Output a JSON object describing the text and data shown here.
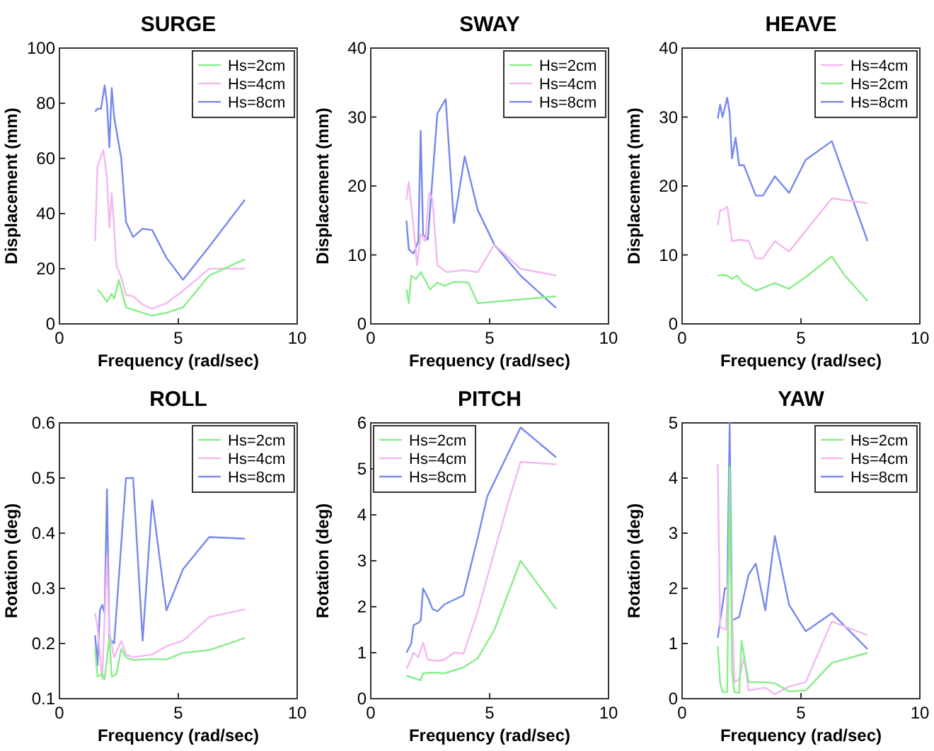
{
  "chart_data": [
    {
      "type": "line",
      "title": "SURGE",
      "xlabel": "Frequency (rad/sec)",
      "ylabel": "Displacement (mm)",
      "xlim": [
        0,
        10
      ],
      "xticks": [
        0,
        5,
        10
      ],
      "ylim": [
        0,
        100
      ],
      "yticks": [
        0,
        20,
        40,
        60,
        80,
        100
      ],
      "legend": "top right",
      "series": [
        {
          "name": "Hs=2cm",
          "color": "#88ee88",
          "x": [
            1.6,
            1.8,
            2.0,
            2.2,
            2.3,
            2.5,
            2.8,
            3.5,
            3.9,
            4.5,
            5.2,
            6.3,
            7.8
          ],
          "values": [
            12.5,
            10.5,
            8,
            11,
            9,
            16,
            6,
            4,
            3,
            4,
            6,
            17.5,
            23.5
          ]
        },
        {
          "name": "Hs=4cm",
          "color": "#f4b8f0",
          "x": [
            1.5,
            1.6,
            1.85,
            2.0,
            2.1,
            2.2,
            2.3,
            2.4,
            2.6,
            2.8,
            3.1,
            3.5,
            3.9,
            4.5,
            5.2,
            6.3,
            7.8
          ],
          "values": [
            30,
            57,
            63,
            53,
            35,
            47.5,
            35,
            21,
            17,
            10.5,
            10,
            7,
            5.5,
            7.5,
            12,
            20,
            20
          ]
        },
        {
          "name": "Hs=8cm",
          "color": "#7788ee",
          "x": [
            1.5,
            1.6,
            1.75,
            1.9,
            2.0,
            2.1,
            2.2,
            2.3,
            2.6,
            2.8,
            3.1,
            3.5,
            3.9,
            4.5,
            5.2,
            6.3,
            7.8
          ],
          "values": [
            77,
            78,
            78,
            86.5,
            80,
            64,
            85.5,
            75,
            60,
            37,
            31.5,
            34.5,
            34,
            24,
            16,
            28,
            45
          ]
        }
      ]
    },
    {
      "type": "line",
      "title": "SWAY",
      "xlabel": "Frequency (rad/sec)",
      "ylabel": "Displacement (mm)",
      "xlim": [
        0,
        10
      ],
      "xticks": [
        0,
        5,
        10
      ],
      "ylim": [
        0,
        40
      ],
      "yticks": [
        0,
        10,
        20,
        30,
        40
      ],
      "legend": "top right",
      "series": [
        {
          "name": "Hs=2cm",
          "color": "#88ee88",
          "x": [
            1.5,
            1.6,
            1.7,
            1.9,
            2.1,
            2.5,
            2.8,
            3.1,
            3.5,
            4.1,
            4.5,
            7.8
          ],
          "values": [
            5,
            3,
            7,
            6.5,
            7.5,
            5,
            6,
            5.5,
            6.1,
            6,
            3,
            4
          ]
        },
        {
          "name": "Hs=4cm",
          "color": "#f4b8f0",
          "x": [
            1.5,
            1.6,
            1.8,
            1.95,
            2.1,
            2.3,
            2.45,
            2.6,
            2.8,
            3.2,
            3.9,
            4.5,
            5.2,
            6.3,
            7.8
          ],
          "values": [
            18,
            20.6,
            14,
            8.5,
            13,
            12,
            19,
            18,
            8.5,
            7.5,
            7.8,
            7.5,
            11.5,
            8,
            7
          ]
        },
        {
          "name": "Hs=8cm",
          "color": "#7788ee",
          "x": [
            1.5,
            1.6,
            1.8,
            2.0,
            2.1,
            2.2,
            2.4,
            2.8,
            3.15,
            3.5,
            3.95,
            4.5,
            5.2,
            6.3,
            7.8
          ],
          "values": [
            15,
            10.8,
            10.2,
            12,
            28,
            13,
            12.2,
            30.5,
            32.6,
            14.6,
            24.3,
            16.5,
            11.5,
            7,
            2.3
          ]
        }
      ]
    },
    {
      "type": "line",
      "title": "HEAVE",
      "xlabel": "Frequency (rad/sec)",
      "ylabel": "Displacement (mm)",
      "xlim": [
        0,
        10
      ],
      "xticks": [
        0,
        5,
        10
      ],
      "ylim": [
        0,
        40
      ],
      "yticks": [
        0,
        10,
        20,
        30,
        40
      ],
      "legend": "top right",
      "series": [
        {
          "name": "Hs=4cm",
          "color": "#f4b8f0",
          "x": [
            1.5,
            1.6,
            1.7,
            1.9,
            2.1,
            2.4,
            2.8,
            3.1,
            3.4,
            3.9,
            4.5,
            5.2,
            6.3,
            7.8
          ],
          "values": [
            14.3,
            16.5,
            16.5,
            17,
            12,
            12.2,
            12,
            9.5,
            9.5,
            12,
            10.5,
            13.5,
            18.2,
            17.5
          ]
        },
        {
          "name": "Hs=2cm",
          "color": "#88ee88",
          "x": [
            1.5,
            1.7,
            1.9,
            2.1,
            2.3,
            2.6,
            2.8,
            3.1,
            3.9,
            4.5,
            5.2,
            6.3,
            6.8,
            7.8
          ],
          "values": [
            7,
            7.1,
            7,
            6.5,
            7,
            5.8,
            5.5,
            4.8,
            5.9,
            5.1,
            6.8,
            9.8,
            7.2,
            3.3
          ]
        },
        {
          "name": "Hs=8cm",
          "color": "#7788ee",
          "x": [
            1.5,
            1.6,
            1.7,
            1.9,
            2.0,
            2.1,
            2.25,
            2.4,
            2.6,
            3.1,
            3.4,
            3.9,
            4.5,
            5.2,
            6.3,
            7.8
          ],
          "values": [
            29.8,
            31.8,
            30,
            32.8,
            30.5,
            24,
            27,
            23,
            23,
            18.6,
            18.6,
            21.4,
            19,
            23.8,
            26.5,
            12
          ]
        }
      ]
    },
    {
      "type": "line",
      "title": "ROLL",
      "xlabel": "Frequency (rad/sec)",
      "ylabel": "Rotation (deg)",
      "xlim": [
        0,
        10
      ],
      "xticks": [
        0,
        5,
        10
      ],
      "ylim": [
        0.1,
        0.6
      ],
      "yticks": [
        0.1,
        0.2,
        0.3,
        0.4,
        0.5,
        0.6
      ],
      "legend": "top right",
      "series": [
        {
          "name": "Hs=2cm",
          "color": "#88ee88",
          "x": [
            1.5,
            1.6,
            1.8,
            1.9,
            2.1,
            2.2,
            2.4,
            2.6,
            2.8,
            3.1,
            3.9,
            4.5,
            5.2,
            6.3,
            7.8
          ],
          "values": [
            0.19,
            0.14,
            0.145,
            0.135,
            0.21,
            0.14,
            0.145,
            0.19,
            0.175,
            0.17,
            0.172,
            0.171,
            0.183,
            0.188,
            0.21
          ]
        },
        {
          "name": "Hs=4cm",
          "color": "#f4b8f0",
          "x": [
            1.5,
            1.6,
            1.8,
            2.0,
            2.1,
            2.3,
            2.6,
            2.8,
            3.1,
            3.9,
            4.5,
            5.2,
            6.3,
            7.8
          ],
          "values": [
            0.255,
            0.23,
            0.135,
            0.36,
            0.22,
            0.175,
            0.205,
            0.18,
            0.175,
            0.18,
            0.195,
            0.205,
            0.248,
            0.262
          ]
        },
        {
          "name": "Hs=8cm",
          "color": "#7788ee",
          "x": [
            1.5,
            1.6,
            1.7,
            1.8,
            1.9,
            2.0,
            2.1,
            2.3,
            2.8,
            3.1,
            3.5,
            3.9,
            4.5,
            5.2,
            6.3,
            7.8
          ],
          "values": [
            0.215,
            0.16,
            0.26,
            0.27,
            0.255,
            0.48,
            0.21,
            0.2,
            0.5,
            0.5,
            0.205,
            0.46,
            0.26,
            0.335,
            0.393,
            0.39
          ]
        }
      ]
    },
    {
      "type": "line",
      "title": "PITCH",
      "xlabel": "Frequency (rad/sec)",
      "ylabel": "Rotation (deg)",
      "xlim": [
        0,
        10
      ],
      "xticks": [
        0,
        5,
        10
      ],
      "ylim": [
        0,
        6
      ],
      "yticks": [
        0,
        1,
        2,
        3,
        4,
        5,
        6
      ],
      "legend": "top left",
      "series": [
        {
          "name": "Hs=2cm",
          "color": "#88ee88",
          "x": [
            1.5,
            1.8,
            2.1,
            2.2,
            2.6,
            3.1,
            3.9,
            4.5,
            5.2,
            6.3,
            7.8
          ],
          "values": [
            0.5,
            0.45,
            0.4,
            0.55,
            0.57,
            0.55,
            0.68,
            0.88,
            1.5,
            3.0,
            1.95
          ]
        },
        {
          "name": "Hs=4cm",
          "color": "#f4b8f0",
          "x": [
            1.5,
            1.6,
            1.8,
            2.0,
            2.2,
            2.4,
            2.8,
            3.1,
            3.5,
            3.9,
            4.5,
            5.2,
            5.8,
            6.3,
            7.8
          ],
          "values": [
            0.65,
            0.75,
            1.0,
            0.9,
            1.22,
            0.85,
            0.82,
            0.85,
            1.0,
            0.98,
            1.9,
            3.2,
            4.3,
            5.15,
            5.1
          ]
        },
        {
          "name": "Hs=8cm",
          "color": "#7788ee",
          "x": [
            1.5,
            1.7,
            1.8,
            2.0,
            2.1,
            2.2,
            2.4,
            2.6,
            2.8,
            3.1,
            3.9,
            4.5,
            4.9,
            6.3,
            7.8
          ],
          "values": [
            1.0,
            1.2,
            1.6,
            1.65,
            1.7,
            2.4,
            2.2,
            1.95,
            1.9,
            2.05,
            2.25,
            3.5,
            4.4,
            5.9,
            5.25
          ]
        }
      ]
    },
    {
      "type": "line",
      "title": "YAW",
      "xlabel": "Frequency (rad/sec)",
      "ylabel": "Rotation (deg)",
      "xlim": [
        0,
        10
      ],
      "xticks": [
        0,
        5,
        10
      ],
      "ylim": [
        0,
        5
      ],
      "yticks": [
        0,
        1,
        2,
        3,
        4,
        5
      ],
      "legend": "top right",
      "series": [
        {
          "name": "Hs=2cm",
          "color": "#88ee88",
          "x": [
            1.5,
            1.6,
            1.7,
            1.9,
            2.0,
            2.1,
            2.2,
            2.4,
            2.5,
            2.8,
            3.5,
            3.9,
            4.5,
            5.2,
            6.3,
            7.8
          ],
          "values": [
            0.95,
            0.3,
            0.12,
            0.12,
            4.2,
            0.5,
            0.12,
            0.1,
            1.05,
            0.3,
            0.3,
            0.28,
            0.13,
            0.15,
            0.65,
            0.83
          ]
        },
        {
          "name": "Hs=4cm",
          "color": "#f4b8f0",
          "x": [
            1.5,
            1.6,
            1.85,
            2.0,
            2.2,
            2.4,
            2.6,
            2.8,
            3.5,
            3.9,
            4.5,
            5.2,
            6.3,
            7.8
          ],
          "values": [
            4.25,
            1.3,
            1.25,
            3.0,
            0.3,
            0.35,
            0.75,
            0.15,
            0.2,
            0.08,
            0.22,
            0.3,
            1.4,
            1.15
          ]
        },
        {
          "name": "Hs=8cm",
          "color": "#7788ee",
          "x": [
            1.5,
            1.8,
            1.9,
            2.0,
            2.1,
            2.4,
            2.8,
            3.1,
            3.5,
            3.9,
            4.5,
            5.2,
            6.3,
            7.8
          ],
          "values": [
            1.1,
            2.0,
            2.0,
            5.0,
            1.42,
            1.48,
            2.25,
            2.45,
            1.6,
            2.95,
            1.7,
            1.22,
            1.55,
            0.9
          ]
        }
      ]
    }
  ]
}
